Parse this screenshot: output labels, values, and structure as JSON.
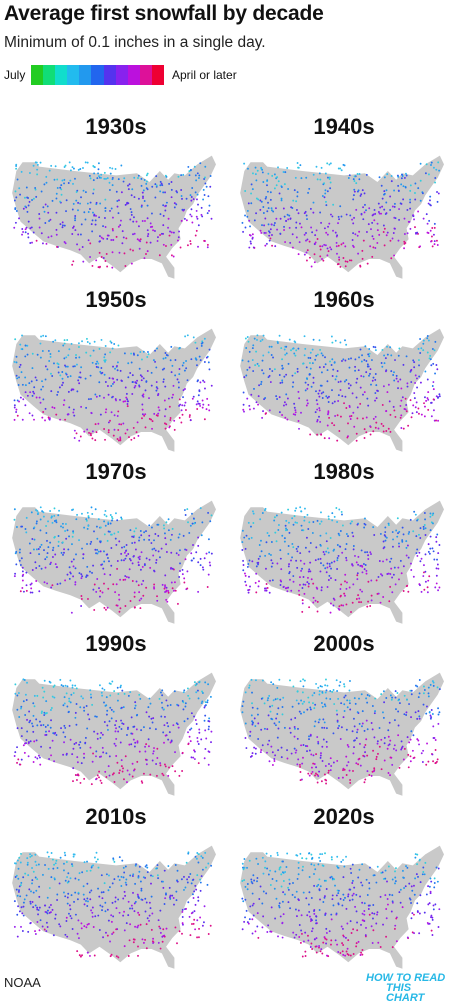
{
  "header": {
    "title": "Average first snowfall by decade",
    "subtitle": "Minimum of 0.1 inches in a single day."
  },
  "legend": {
    "start_label": "July",
    "end_label": "April or later",
    "colors": [
      "#22cc22",
      "#11dd77",
      "#11ddcc",
      "#22bbee",
      "#2299ee",
      "#2266ee",
      "#5533ee",
      "#8822ee",
      "#bb11dd",
      "#dd1199",
      "#ee0033"
    ]
  },
  "chart_data": {
    "type": "map",
    "title": "Average first snowfall by decade",
    "subtitle": "Minimum of 0.1 inches in a single day.",
    "legend": {
      "start": "July",
      "end": "April or later",
      "scale": "color"
    },
    "panels": [
      {
        "label": "1930s"
      },
      {
        "label": "1940s"
      },
      {
        "label": "1950s"
      },
      {
        "label": "1960s"
      },
      {
        "label": "1970s"
      },
      {
        "label": "1980s"
      },
      {
        "label": "1990s"
      },
      {
        "label": "2000s"
      },
      {
        "label": "2010s"
      },
      {
        "label": "2020s"
      }
    ]
  },
  "colors": {
    "land": "#c9c9c9",
    "early": "#22ccdd",
    "mid": "#2266ee",
    "late": "#9922ee",
    "latest": "#ee1177"
  },
  "footer": {
    "source": "NOAA",
    "brand_line1": "HOW TO READ",
    "brand_line2": "THIS CHART"
  }
}
